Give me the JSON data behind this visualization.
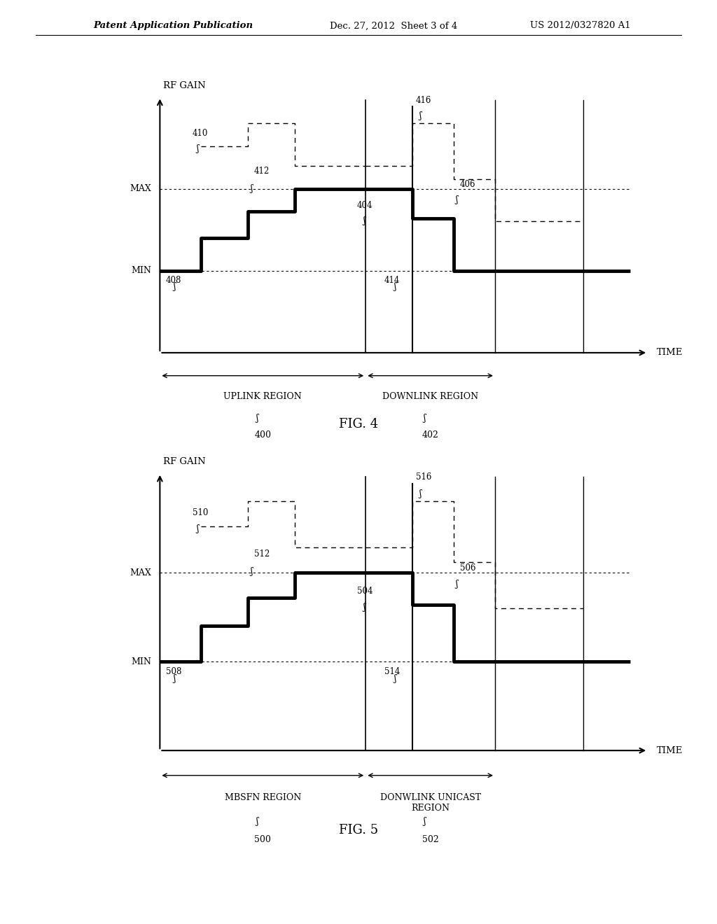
{
  "header_left": "Patent Application Publication",
  "header_mid": "Dec. 27, 2012  Sheet 3 of 4",
  "header_right": "US 2012/0327820 A1",
  "fig4_label": "FIG. 4",
  "fig5_label": "FIG. 5",
  "background": "#ffffff",
  "fig4": {
    "region1_label": "UPLINK REGION",
    "region1_num": "400",
    "region2_label": "DOWNLINK REGION",
    "region2_num": "402",
    "ann1": "410",
    "ann2": "412",
    "ann3": "416",
    "ann4": "404",
    "ann5": "406",
    "ann6": "408",
    "ann7": "414"
  },
  "fig5": {
    "region1_label": "MBSFN REGION",
    "region1_num": "500",
    "region2_label": "DONWLINK UNICAST\nREGION",
    "region2_num": "502",
    "ann1": "510",
    "ann2": "512",
    "ann3": "516",
    "ann4": "504",
    "ann5": "506",
    "ann6": "508",
    "ann7": "514"
  }
}
